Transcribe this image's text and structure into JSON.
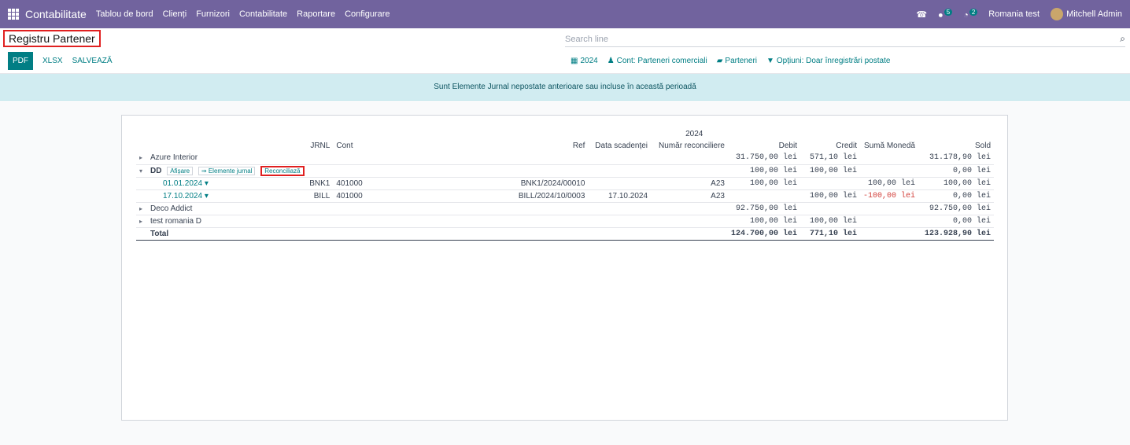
{
  "navbar": {
    "app": "Contabilitate",
    "menu": [
      "Tablou de bord",
      "Clienți",
      "Furnizori",
      "Contabilitate",
      "Raportare",
      "Configurare"
    ],
    "chat_count": "5",
    "activity_count": "2",
    "company": "Romania test",
    "user": "Mitchell Admin"
  },
  "control": {
    "title": "Registru Partener",
    "search_placeholder": "Search line",
    "pdf": "PDF",
    "xlsx": "XLSX",
    "save": "SALVEAZĂ",
    "filter_year": "2024",
    "filter_account": "Cont: Parteneri comerciali",
    "filter_partners": "Parteneri",
    "filter_options": "Opțiuni: Doar înregistrări postate"
  },
  "alert": "Sunt Elemente Jurnal nepostate anterioare sau incluse în această perioadă",
  "report": {
    "year": "2024",
    "headers": {
      "jrnl": "JRNL",
      "cont": "Cont",
      "ref": "Ref",
      "due": "Data scadenței",
      "recon": "Număr reconciliere",
      "debit": "Debit",
      "credit": "Credit",
      "currency": "Sumă Monedă",
      "sold": "Sold"
    },
    "azure": {
      "name": "Azure Interior",
      "debit": "31.750,00 lei",
      "credit": "571,10 lei",
      "sold": "31.178,90 lei"
    },
    "dd": {
      "name": "DD",
      "btn_show": "Afișare",
      "btn_items": "⇒ Elemente jurnal",
      "btn_reconcile": "Reconciliază",
      "debit": "100,00 lei",
      "credit": "100,00 lei",
      "sold": "0,00 lei"
    },
    "line1": {
      "date": "01.01.2024",
      "jrnl": "BNK1",
      "cont": "401000",
      "ref": "BNK1/2024/00010",
      "due": "",
      "recon": "A23",
      "debit": "100,00 lei",
      "credit": "",
      "currency": "100,00 lei",
      "sold": "100,00 lei"
    },
    "line2": {
      "date": "17.10.2024",
      "jrnl": "BILL",
      "cont": "401000",
      "ref": "BILL/2024/10/0003",
      "due": "17.10.2024",
      "recon": "A23",
      "debit": "",
      "credit": "100,00 lei",
      "currency": "-100,00 lei",
      "sold": "0,00 lei"
    },
    "deco": {
      "name": "Deco Addict",
      "debit": "92.750,00 lei",
      "credit": "",
      "sold": "92.750,00 lei"
    },
    "test": {
      "name": "test romania D",
      "debit": "100,00 lei",
      "credit": "100,00 lei",
      "sold": "0,00 lei"
    },
    "total": {
      "label": "Total",
      "debit": "124.700,00 lei",
      "credit": "771,10 lei",
      "sold": "123.928,90 lei"
    }
  },
  "colors": {
    "navbar": "#71639e",
    "accent": "#017e84",
    "alert_bg": "#d1ecf1",
    "negative": "#d23f3a",
    "highlight": "#e02020"
  }
}
